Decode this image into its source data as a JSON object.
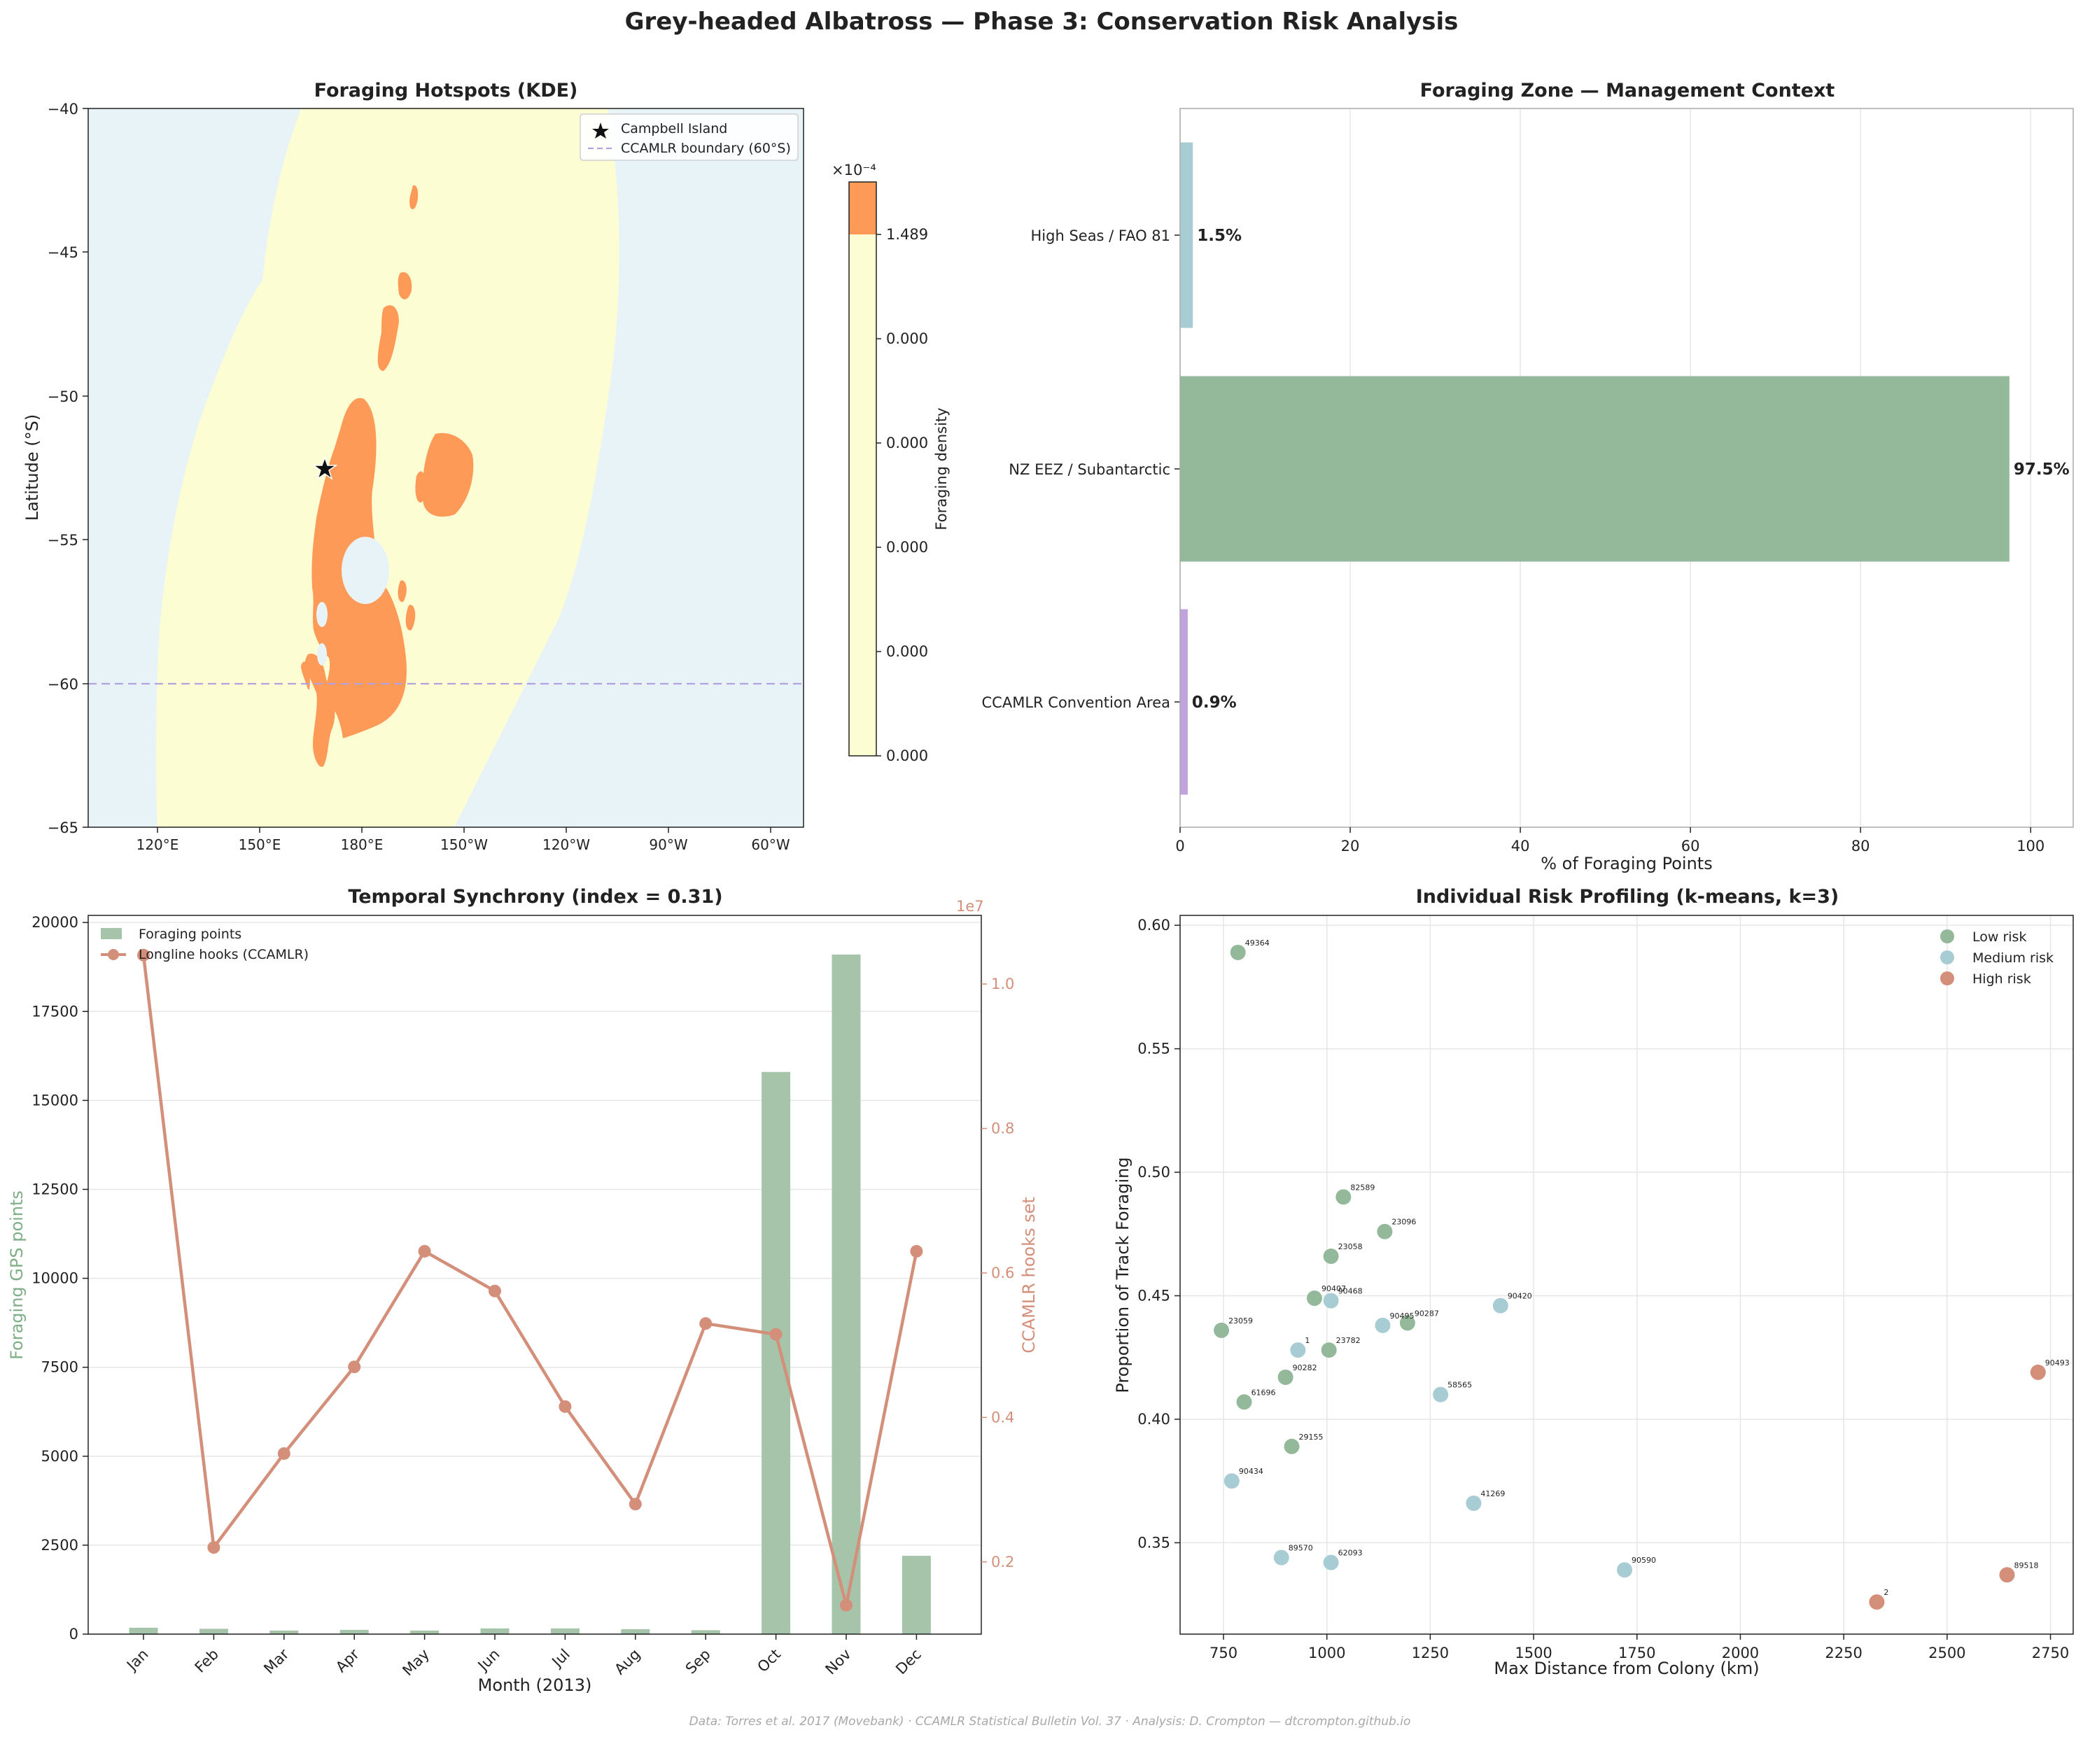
{
  "suptitle": "Grey-headed Albatross — Phase 3: Conservation Risk Analysis",
  "footer": "Data: Torres et al. 2017 (Movebank) · CCAMLR Statistical Bulletin Vol. 37 · Analysis: D. Crompton — dtcrompton.github.io",
  "colors": {
    "green": "#94b99a",
    "blue": "#a8ccd3",
    "orange": "#d48f7a",
    "purple": "#c0a2dc",
    "hotspot": "#fd9a57",
    "kde_light": "#fcfdd3",
    "ocean": "#e8f3f8"
  },
  "chart_data": [
    {
      "type": "heatmap",
      "title": "Foraging Hotspots (KDE)",
      "ylabel": "Latitude (°S)",
      "ylim": [
        -65,
        -40
      ],
      "y_ticks": [
        "−40",
        "−45",
        "−50",
        "−55",
        "−60",
        "−65"
      ],
      "x_ticks": [
        "120°E",
        "150°E",
        "180°E",
        "150°W",
        "120°W",
        "90°W",
        "60°W"
      ],
      "colorbar": {
        "label": "Foraging density",
        "multiplier": "×10⁻⁴",
        "ticks": [
          "1.489",
          "0.000",
          "0.000",
          "0.000",
          "0.000",
          "0.000"
        ]
      },
      "legend": {
        "placement": "top-right",
        "entries": [
          "Campbell Island",
          "CCAMLR boundary (60°S)"
        ]
      },
      "boundary_lat": -60
    },
    {
      "type": "bar",
      "orientation": "horizontal",
      "title": "Foraging Zone — Management Context",
      "xlabel": "% of Foraging Points",
      "xlim": [
        0,
        105
      ],
      "x_ticks": [
        "0",
        "20",
        "40",
        "60",
        "80",
        "100"
      ],
      "categories": [
        "High Seas / FAO 81",
        "NZ EEZ / Subantarctic",
        "CCAMLR Convention Area"
      ],
      "values": [
        1.5,
        97.5,
        0.9
      ],
      "value_labels": [
        "1.5%",
        "97.5%",
        "0.9%"
      ]
    },
    {
      "type": "bar",
      "title": "Temporal Synchrony (index = 0.31)",
      "xlabel": "Month (2013)",
      "ylabel": "Foraging GPS points",
      "y2label": "CCAMLR hooks set",
      "y2_multiplier": "1e7",
      "ylim": [
        0,
        20200
      ],
      "y2lim": [
        0.1,
        1.095
      ],
      "y_ticks": [
        "0",
        "2500",
        "5000",
        "7500",
        "10000",
        "12500",
        "15000",
        "17500",
        "20000"
      ],
      "y2_ticks": [
        "0.2",
        "0.4",
        "0.6",
        "0.8",
        "1.0"
      ],
      "categories": [
        "Jan",
        "Feb",
        "Mar",
        "Apr",
        "May",
        "Jun",
        "Jul",
        "Aug",
        "Sep",
        "Oct",
        "Nov",
        "Dec"
      ],
      "series": [
        {
          "name": "Foraging points",
          "values": [
            180,
            150,
            100,
            120,
            100,
            160,
            160,
            140,
            110,
            15800,
            19100,
            2200
          ]
        },
        {
          "name": "Longline hooks (CCAMLR)",
          "values": [
            1.04,
            0.22,
            0.35,
            0.47,
            0.63,
            0.575,
            0.415,
            0.28,
            0.53,
            0.515,
            0.14,
            0.63
          ]
        }
      ],
      "legend": {
        "placement": "top-left"
      }
    },
    {
      "type": "scatter",
      "title": "Individual Risk Profiling (k-means, k=3)",
      "xlabel": "Max Distance from Colony (km)",
      "ylabel": "Proportion of Track Foraging",
      "xlim": [
        645,
        2805
      ],
      "ylim": [
        0.313,
        0.604
      ],
      "x_ticks": [
        "750",
        "1000",
        "1250",
        "1500",
        "1750",
        "2000",
        "2250",
        "2500",
        "2750"
      ],
      "y_ticks": [
        "0.35",
        "0.40",
        "0.45",
        "0.50",
        "0.55",
        "0.60"
      ],
      "legend": {
        "placement": "top-right",
        "entries": [
          "Low risk",
          "Medium risk",
          "High risk"
        ]
      },
      "points": [
        {
          "x": 785,
          "y": 0.589,
          "label": "49364",
          "group": "low"
        },
        {
          "x": 1040,
          "y": 0.49,
          "label": "82589",
          "group": "low"
        },
        {
          "x": 1140,
          "y": 0.476,
          "label": "23096",
          "group": "low"
        },
        {
          "x": 1010,
          "y": 0.466,
          "label": "23058",
          "group": "low"
        },
        {
          "x": 970,
          "y": 0.449,
          "label": "90407",
          "group": "low"
        },
        {
          "x": 1010,
          "y": 0.448,
          "label": "90468",
          "group": "medium"
        },
        {
          "x": 1420,
          "y": 0.446,
          "label": "90420",
          "group": "medium"
        },
        {
          "x": 1195,
          "y": 0.439,
          "label": "90287",
          "group": "low"
        },
        {
          "x": 1135,
          "y": 0.438,
          "label": "90495",
          "group": "medium"
        },
        {
          "x": 745,
          "y": 0.436,
          "label": "23059",
          "group": "low"
        },
        {
          "x": 930,
          "y": 0.428,
          "label": "1",
          "group": "medium"
        },
        {
          "x": 1005,
          "y": 0.428,
          "label": "23782",
          "group": "low"
        },
        {
          "x": 900,
          "y": 0.417,
          "label": "90282",
          "group": "low"
        },
        {
          "x": 1275,
          "y": 0.41,
          "label": "58565",
          "group": "medium"
        },
        {
          "x": 800,
          "y": 0.407,
          "label": "61696",
          "group": "low"
        },
        {
          "x": 915,
          "y": 0.389,
          "label": "29155",
          "group": "low"
        },
        {
          "x": 770,
          "y": 0.375,
          "label": "90434",
          "group": "medium"
        },
        {
          "x": 1355,
          "y": 0.366,
          "label": "41269",
          "group": "medium"
        },
        {
          "x": 890,
          "y": 0.344,
          "label": "89570",
          "group": "medium"
        },
        {
          "x": 1010,
          "y": 0.342,
          "label": "62093",
          "group": "medium"
        },
        {
          "x": 1720,
          "y": 0.339,
          "label": "90590",
          "group": "medium"
        },
        {
          "x": 2330,
          "y": 0.326,
          "label": "2",
          "group": "high"
        },
        {
          "x": 2645,
          "y": 0.337,
          "label": "89518",
          "group": "high"
        },
        {
          "x": 2720,
          "y": 0.419,
          "label": "90493",
          "group": "high"
        }
      ]
    }
  ]
}
